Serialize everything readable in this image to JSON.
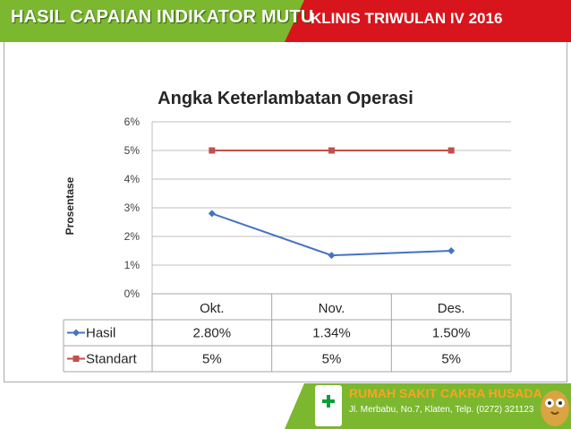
{
  "header": {
    "left_title": "HASIL CAPAIAN INDIKATOR MUTU",
    "right_title": "KLINIS TRIWULAN IV 2016"
  },
  "footer": {
    "hospital_name": "RUMAH SAKIT CAKRA HUSADA",
    "address": "Jl. Merbabu, No.7, Klaten, Telp. (0272) 321123"
  },
  "chart_data": {
    "type": "line",
    "title": "Angka Keterlambatan Operasi",
    "ylabel": "Prosentase",
    "xlabel": "",
    "categories": [
      "Okt.",
      "Nov.",
      "Des."
    ],
    "ylim": [
      0,
      6
    ],
    "yticks": [
      "0%",
      "1%",
      "2%",
      "3%",
      "4%",
      "5%",
      "6%"
    ],
    "grid": true,
    "legend": "data-table",
    "series": [
      {
        "name": "Hasil",
        "values": [
          2.8,
          1.34,
          1.5
        ],
        "labels": [
          "2.80%",
          "1.34%",
          "1.50%"
        ],
        "color": "#4472c4",
        "marker": "diamond"
      },
      {
        "name": "Standart",
        "values": [
          5,
          5,
          5
        ],
        "labels": [
          "5%",
          "5%",
          "5%"
        ],
        "color": "#c0504d",
        "marker": "square"
      }
    ]
  }
}
